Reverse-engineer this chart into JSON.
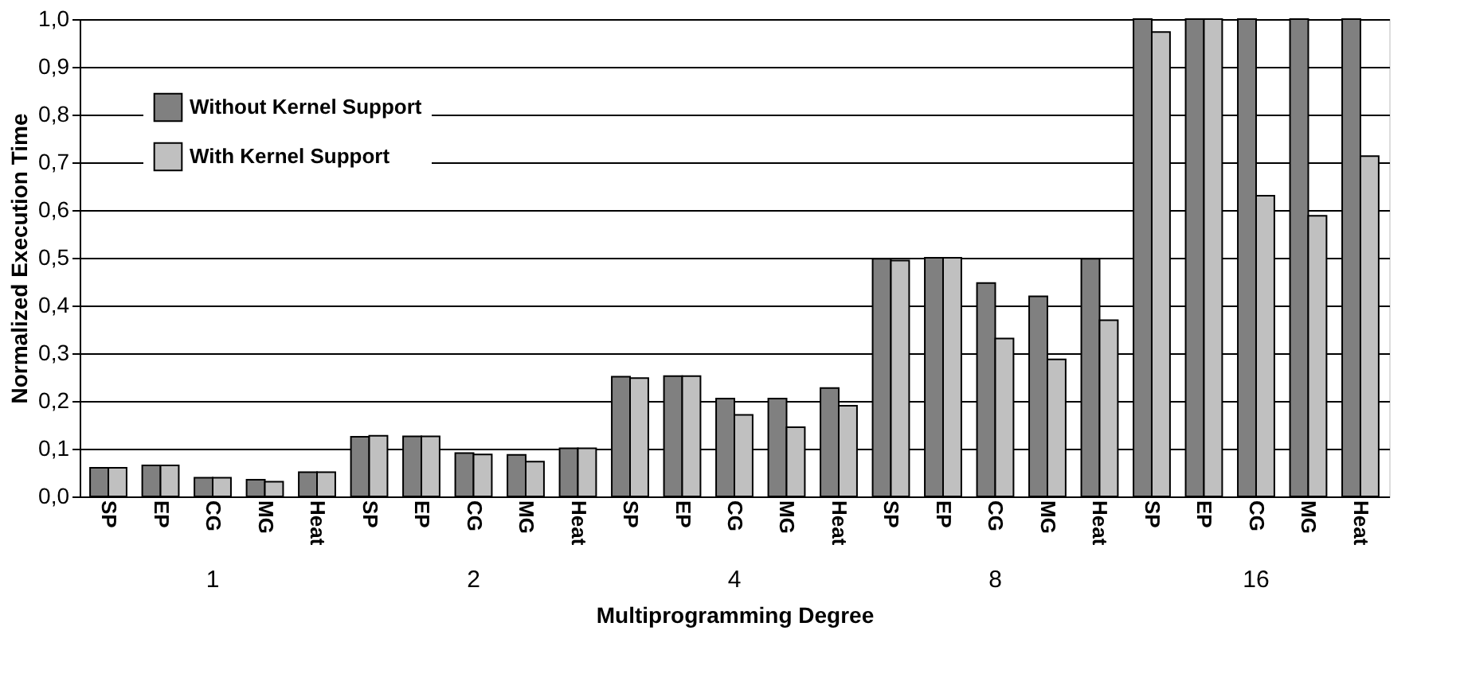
{
  "chart_data": {
    "type": "bar",
    "xlabel": "Multiprogramming Degree",
    "ylabel": "Normalized Execution Time",
    "categories": [
      "SP",
      "EP",
      "CG",
      "MG",
      "Heat",
      "SP",
      "EP",
      "CG",
      "MG",
      "Heat",
      "SP",
      "EP",
      "CG",
      "MG",
      "Heat",
      "SP",
      "EP",
      "CG",
      "MG",
      "Heat",
      "SP",
      "EP",
      "CG",
      "MG",
      "Heat"
    ],
    "annotations": [
      "1",
      "2",
      "4",
      "8",
      "16"
    ],
    "series": [
      {
        "name": "Without Kernel Support",
        "color": "#808080",
        "values": [
          0.06,
          0.065,
          0.039,
          0.035,
          0.051,
          0.125,
          0.126,
          0.091,
          0.087,
          0.101,
          0.251,
          0.252,
          0.205,
          0.205,
          0.227,
          0.498,
          0.5,
          0.447,
          0.419,
          0.498,
          1.0,
          1.0,
          1.0,
          1.0,
          1.0
        ]
      },
      {
        "name": "With Kernel Support",
        "color": "#c0c0c0",
        "values": [
          0.06,
          0.065,
          0.039,
          0.031,
          0.051,
          0.127,
          0.126,
          0.088,
          0.073,
          0.101,
          0.248,
          0.252,
          0.171,
          0.145,
          0.19,
          0.494,
          0.5,
          0.331,
          0.287,
          0.369,
          0.973,
          1.0,
          0.63,
          0.588,
          0.713
        ]
      }
    ],
    "ylim": [
      0,
      1.0
    ],
    "yticks": [
      {
        "value": 0,
        "label": "0,0"
      },
      {
        "value": 0.1,
        "label": "0,1"
      },
      {
        "value": 0.2,
        "label": "0,2"
      },
      {
        "value": 0.3,
        "label": "0,3"
      },
      {
        "value": 0.4,
        "label": "0,4"
      },
      {
        "value": 0.5,
        "label": "0,5"
      },
      {
        "value": 0.6,
        "label": "0,6"
      },
      {
        "value": 0.7,
        "label": "0,7"
      },
      {
        "value": 0.8,
        "label": "0,8"
      },
      {
        "value": 0.9,
        "label": "0,9"
      },
      {
        "value": 1.0,
        "label": "1,0"
      }
    ],
    "grid": "y",
    "legend": "top left"
  }
}
